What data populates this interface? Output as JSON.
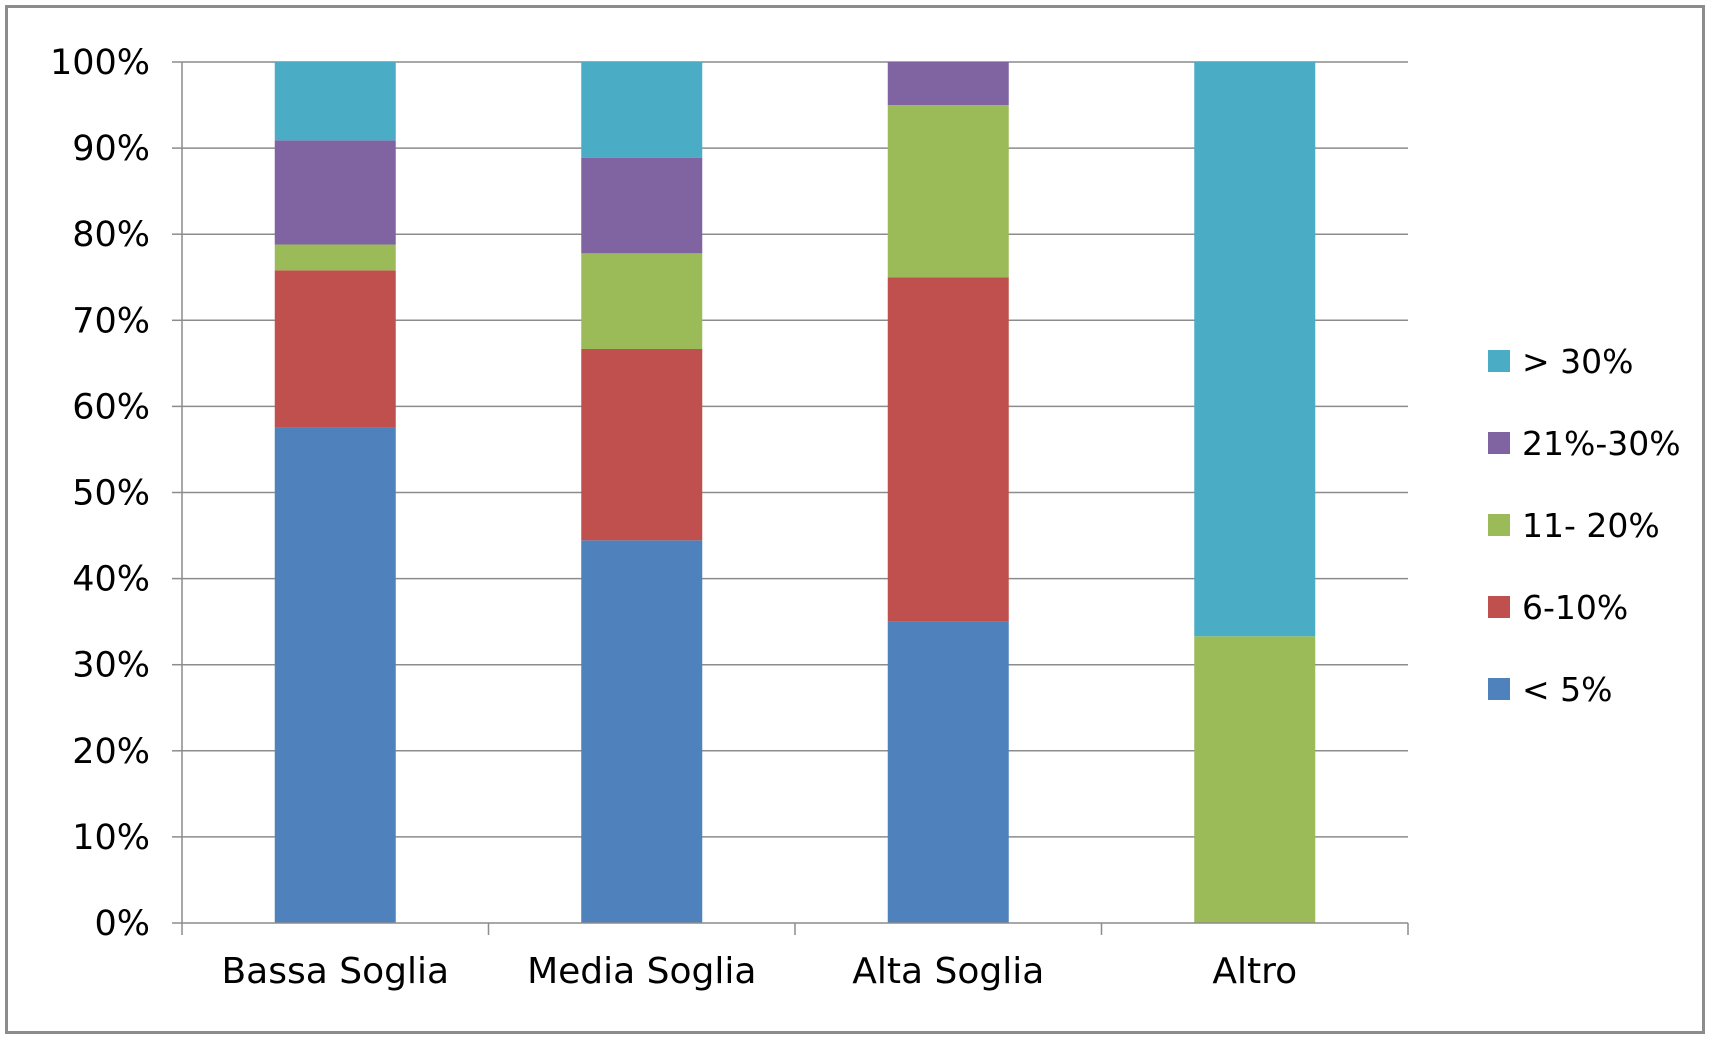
{
  "chart_data": {
    "type": "bar",
    "stacked": true,
    "percent_stacked": true,
    "title": "",
    "xlabel": "",
    "ylabel": "",
    "ylim": [
      0,
      100
    ],
    "y_ticks": [
      "0%",
      "10%",
      "20%",
      "30%",
      "40%",
      "50%",
      "60%",
      "70%",
      "80%",
      "90%",
      "100%"
    ],
    "grid": true,
    "legend_position": "right",
    "categories": [
      "Bassa Soglia",
      "Media Soglia",
      "Alta Soglia",
      "Altro"
    ],
    "series": [
      {
        "name": "< 5%",
        "color": "#4F81BD",
        "values": [
          57.6,
          44.4,
          35.0,
          0
        ]
      },
      {
        "name": "6-10%",
        "color": "#C0504D",
        "values": [
          18.2,
          22.2,
          40.0,
          0
        ]
      },
      {
        "name": "11- 20%",
        "color": "#9BBB59",
        "values": [
          3.0,
          11.1,
          20.0,
          33.3
        ]
      },
      {
        "name": "21%-30%",
        "color": "#8064A2",
        "values": [
          12.1,
          11.1,
          5.0,
          0
        ]
      },
      {
        "name": "> 30%",
        "color": "#4BACC6",
        "values": [
          9.1,
          11.1,
          0,
          66.7
        ]
      }
    ]
  }
}
